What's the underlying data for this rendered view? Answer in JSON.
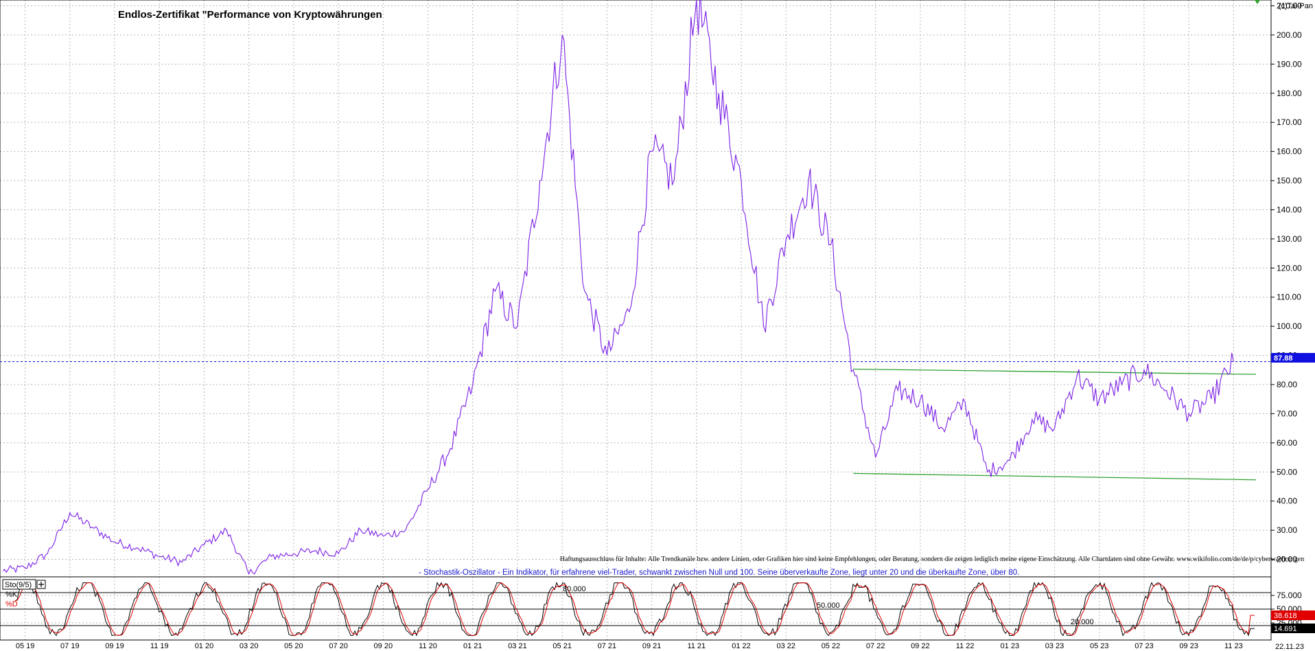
{
  "chart_data": [
    {
      "type": "line",
      "title": "Endlos-Zertifikat \"Performance von Kryptowährungen",
      "copyright": "(c)Tai-Pan",
      "x_labels": [
        "05:19",
        "07:19",
        "09:19",
        "11:19",
        "01:20",
        "03:20",
        "05:20",
        "07:20",
        "09:20",
        "11:20",
        "01:21",
        "03:21",
        "05:21",
        "07:21",
        "09:21",
        "11:21",
        "01:22",
        "03:22",
        "05:22",
        "07:22",
        "09:22",
        "11:22",
        "01:23",
        "03:23",
        "05:23",
        "07:23",
        "09:23",
        "11:23"
      ],
      "last_date_label": "22.11.23",
      "y_ticks": [
        "20.00",
        "30.00",
        "40.00",
        "50.00",
        "60.00",
        "70.00",
        "80.00",
        "90.00",
        "100.00",
        "110.00",
        "120.00",
        "130.00",
        "140.00",
        "150.00",
        "160.00",
        "170.00",
        "180.00",
        "190.00",
        "200.00",
        "210.00"
      ],
      "ylim": [
        14,
        212
      ],
      "grid": true,
      "series": [
        {
          "color": "#7b1fe6",
          "x": [
            "2019-04",
            "2019-05",
            "2019-06",
            "2019-07",
            "2019-08",
            "2019-09",
            "2019-10",
            "2019-11",
            "2019-12",
            "2020-01",
            "2020-02",
            "2020-03",
            "2020-04",
            "2020-05",
            "2020-06",
            "2020-07",
            "2020-08",
            "2020-09",
            "2020-10",
            "2020-11",
            "2020-12",
            "2021-01",
            "2021-02",
            "2021-03",
            "2021-04",
            "2021-05",
            "2021-06",
            "2021-07",
            "2021-08",
            "2021-09",
            "2021-10",
            "2021-11",
            "2021-12",
            "2022-01",
            "2022-02",
            "2022-03",
            "2022-04",
            "2022-05",
            "2022-06",
            "2022-07",
            "2022-08",
            "2022-09",
            "2022-10",
            "2022-11",
            "2022-12",
            "2023-01",
            "2023-02",
            "2023-03",
            "2023-04",
            "2023-05",
            "2023-06",
            "2023-07",
            "2023-08",
            "2023-09",
            "2023-10",
            "2023-11"
          ],
          "values": [
            16,
            17,
            22,
            36,
            31,
            26,
            24,
            21,
            19,
            25,
            30,
            15,
            21,
            22,
            23,
            22,
            30,
            28,
            30,
            44,
            58,
            80,
            112,
            100,
            150,
            200,
            112,
            90,
            105,
            160,
            150,
            212,
            180,
            150,
            100,
            130,
            150,
            128,
            85,
            55,
            78,
            75,
            65,
            74,
            50,
            54,
            68,
            65,
            83,
            75,
            80,
            85,
            78,
            70,
            75,
            87.88
          ]
        }
      ],
      "current_value": "87.88",
      "trend_lines": [
        {
          "name": "upper",
          "color": "#2ea02e",
          "start": {
            "x": "2022-06",
            "y": 85.3
          },
          "end": {
            "x": "2023-12",
            "y": 83.5
          }
        },
        {
          "name": "lower",
          "color": "#2ea02e",
          "start": {
            "x": "2022-06",
            "y": 49.5
          },
          "end": {
            "x": "2023-12",
            "y": 47.3
          }
        }
      ],
      "reference_line": {
        "value": 87.88,
        "color": "#1a1ad0",
        "style": "dotted"
      },
      "disclaimer": "Haftungsausschluss für Inhalte: Alle Trendkanäle bzw. andere Linien, oder Grafiken hier sind keine Empfehlungen, oder Beratung, sondern die zeigen lediglich meine eigene Einschätzung. Alle Chartdaten sind ohne Gewähr. www.wikifolio.com/de/de/p/cyberwaehrungen",
      "note": "- Stochastik-Oszillator - Ein Indikator, für erfahrene viel-Trader, schwankt zwischen Null und 100. Seine überverkaufte Zone, liegt unter 20 und die überkaufte Zone, über 80."
    },
    {
      "type": "line",
      "title": "Sto(9/5)",
      "ylim": [
        0,
        100
      ],
      "y_ticks": [
        "25.000",
        "50.000",
        "75.000"
      ],
      "levels": [
        {
          "label": "80.000",
          "value": 80
        },
        {
          "label": "50.000",
          "value": 50
        },
        {
          "label": "20.000",
          "value": 20
        }
      ],
      "series": [
        {
          "name": "%K",
          "color": "#000000",
          "last_value": "14.691"
        },
        {
          "name": "%D",
          "color": "#e00000",
          "last_value": "38.618"
        }
      ]
    }
  ]
}
